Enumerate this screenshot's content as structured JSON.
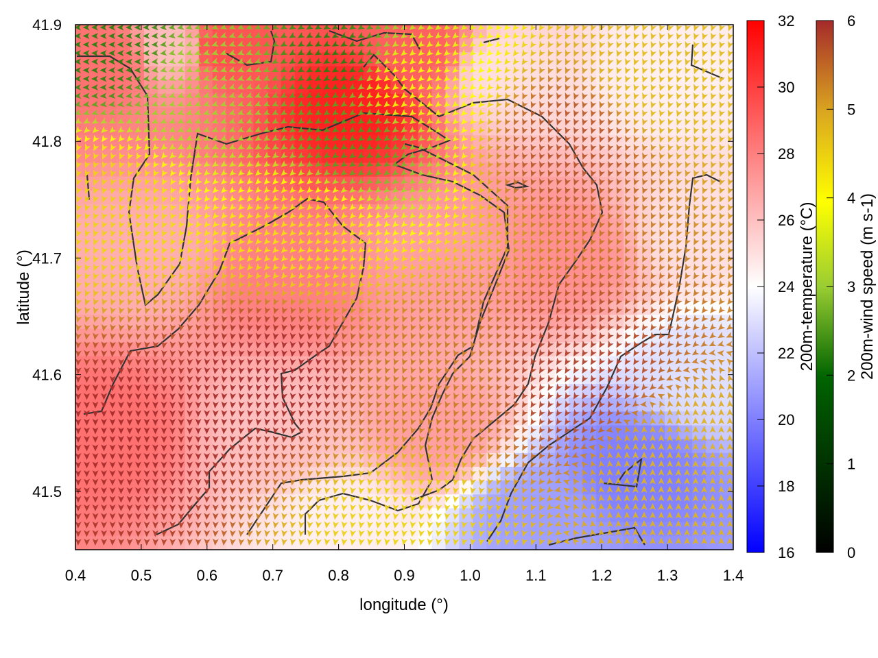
{
  "chart_data": {
    "type": "heatmap",
    "xlabel": "longitude (°)",
    "ylabel": "latitude (°)",
    "xlim": [
      0.4,
      1.4
    ],
    "ylim": [
      41.45,
      41.9
    ],
    "xticks": [
      "0.4",
      "0.5",
      "0.6",
      "0.7",
      "0.8",
      "0.9",
      "1.0",
      "1.1",
      "1.2",
      "1.3",
      "1.4"
    ],
    "yticks": [
      "41.5",
      "41.6",
      "41.7",
      "41.8",
      "41.9"
    ],
    "grid": false,
    "temperature": {
      "label": "200m-temperature (°C)",
      "range": [
        16,
        32
      ],
      "ticks": [
        "16",
        "18",
        "20",
        "22",
        "24",
        "26",
        "28",
        "30",
        "32"
      ],
      "colors": [
        "#0000ff",
        "#ffffff",
        "#ff0000"
      ]
    },
    "wind": {
      "label": "200m-wind speed (m s-1)",
      "range": [
        0,
        6
      ],
      "ticks": [
        "0",
        "1",
        "2",
        "3",
        "4",
        "5",
        "6"
      ],
      "colors": [
        "#000000",
        "#006400",
        "#9acd32",
        "#ffff00",
        "#daa520",
        "#a52a2a"
      ]
    },
    "temperature_field": [
      {
        "lon": 0.45,
        "lat": 41.87,
        "t": 28.5
      },
      {
        "lon": 0.55,
        "lat": 41.88,
        "t": 26
      },
      {
        "lon": 0.62,
        "lat": 41.88,
        "t": 29.5
      },
      {
        "lon": 0.82,
        "lat": 41.83,
        "t": 31
      },
      {
        "lon": 0.92,
        "lat": 41.88,
        "t": 29
      },
      {
        "lon": 1.05,
        "lat": 41.86,
        "t": 25
      },
      {
        "lon": 1.3,
        "lat": 41.86,
        "t": 24.5
      },
      {
        "lon": 0.5,
        "lat": 41.7,
        "t": 26.5
      },
      {
        "lon": 0.72,
        "lat": 41.68,
        "t": 28
      },
      {
        "lon": 0.95,
        "lat": 41.7,
        "t": 27
      },
      {
        "lon": 1.15,
        "lat": 41.7,
        "t": 27.5
      },
      {
        "lon": 1.35,
        "lat": 41.72,
        "t": 25
      },
      {
        "lon": 0.45,
        "lat": 41.55,
        "t": 28.5
      },
      {
        "lon": 0.7,
        "lat": 41.55,
        "t": 26
      },
      {
        "lon": 0.95,
        "lat": 41.55,
        "t": 27
      },
      {
        "lon": 1.25,
        "lat": 41.52,
        "t": 20
      },
      {
        "lon": 1.1,
        "lat": 41.48,
        "t": 21
      },
      {
        "lon": 0.8,
        "lat": 41.47,
        "t": 24.5
      },
      {
        "lon": 1.35,
        "lat": 41.6,
        "t": 23
      }
    ],
    "wind_field": [
      {
        "lon": 0.45,
        "lat": 41.88,
        "speed": 1.5,
        "dir_deg": 270
      },
      {
        "lon": 0.6,
        "lat": 41.85,
        "speed": 2.5,
        "dir_deg": 250
      },
      {
        "lon": 0.82,
        "lat": 41.8,
        "speed": 1.8,
        "dir_deg": 235
      },
      {
        "lon": 0.8,
        "lat": 41.87,
        "speed": 1.5,
        "dir_deg": 240
      },
      {
        "lon": 0.75,
        "lat": 41.73,
        "speed": 4,
        "dir_deg": 225
      },
      {
        "lon": 0.43,
        "lat": 41.75,
        "speed": 4.2,
        "dir_deg": 200
      },
      {
        "lon": 0.9,
        "lat": 41.85,
        "speed": 3.5,
        "dir_deg": 230
      },
      {
        "lon": 1.15,
        "lat": 41.8,
        "speed": 5.6,
        "dir_deg": 200
      },
      {
        "lon": 1.3,
        "lat": 41.85,
        "speed": 4.5,
        "dir_deg": 200
      },
      {
        "lon": 0.5,
        "lat": 41.55,
        "speed": 6,
        "dir_deg": 180
      },
      {
        "lon": 0.7,
        "lat": 41.6,
        "speed": 6,
        "dir_deg": 190
      },
      {
        "lon": 0.95,
        "lat": 41.6,
        "speed": 5.2,
        "dir_deg": 200
      },
      {
        "lon": 1.15,
        "lat": 41.6,
        "speed": 5.8,
        "dir_deg": 210
      },
      {
        "lon": 1.32,
        "lat": 41.52,
        "speed": 4.6,
        "dir_deg": 0
      },
      {
        "lon": 0.9,
        "lat": 41.47,
        "speed": 4.2,
        "dir_deg": 190
      }
    ]
  }
}
